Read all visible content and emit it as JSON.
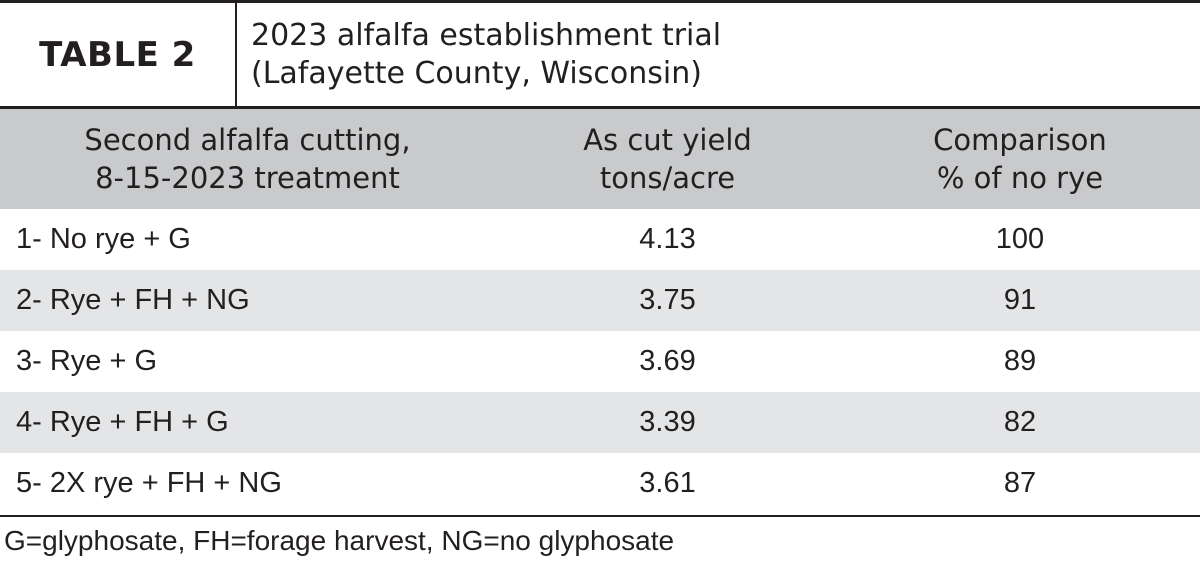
{
  "table": {
    "label": "TABLE 2",
    "title_line1": "2023 alfalfa establishment trial",
    "title_line2": "(Lafayette County, Wisconsin)",
    "headers": [
      {
        "line1": "Second alfalfa cutting,",
        "line2": "8-15-2023 treatment"
      },
      {
        "line1": "As cut yield",
        "line2": "tons/acre"
      },
      {
        "line1": "Comparison",
        "line2": "% of no rye"
      }
    ],
    "rows": [
      {
        "treatment": "1- No rye + G",
        "yield": "4.13",
        "comparison": "100"
      },
      {
        "treatment": "2- Rye + FH + NG",
        "yield": "3.75",
        "comparison": "91"
      },
      {
        "treatment": "3- Rye + G",
        "yield": "3.69",
        "comparison": "89"
      },
      {
        "treatment": "4- Rye + FH + G",
        "yield": "3.39",
        "comparison": "82"
      },
      {
        "treatment": "5- 2X rye + FH + NG",
        "yield": "3.61",
        "comparison": "87"
      }
    ],
    "footnote": "G=glyphosate, FH=forage harvest, NG=no glyphosate"
  },
  "colors": {
    "rule": "#231f20",
    "header_bg": "#c9cacc",
    "stripe_bg": "#e4e5e6",
    "text": "#231f20"
  }
}
